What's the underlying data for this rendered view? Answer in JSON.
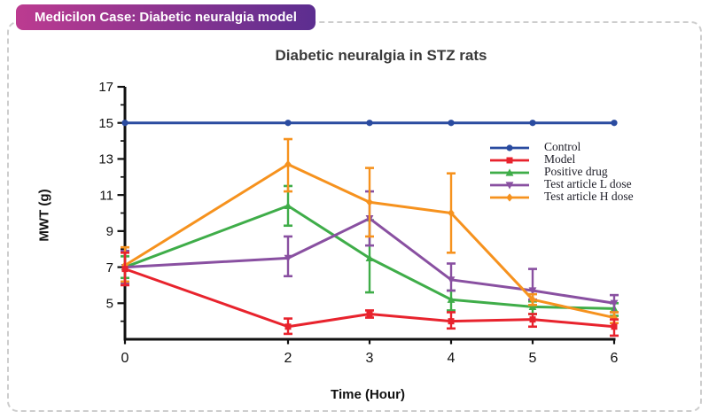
{
  "badge": {
    "label": "Medicilon Case: Diabetic neuralgia model",
    "gradient_start": "#bc3b90",
    "gradient_end": "#5c2e90",
    "text_color": "#ffffff"
  },
  "chart_data": {
    "type": "line",
    "title": "Diabetic neuralgia in STZ rats",
    "xlabel": "Time (Hour)",
    "ylabel": "MWT (g)",
    "x": [
      0,
      2,
      3,
      4,
      5,
      6
    ],
    "xlim": [
      0,
      6
    ],
    "ylim": [
      3,
      17
    ],
    "x_ticks": [
      0,
      2,
      3,
      4,
      5,
      6
    ],
    "y_major_ticks": [
      5,
      7,
      9,
      11,
      13,
      15,
      17
    ],
    "y_minor_ticks": [
      4,
      6,
      8,
      10,
      12,
      14,
      16
    ],
    "grid": false,
    "legend_position": "right",
    "axis_color": "#111111",
    "series": [
      {
        "name": "Control",
        "color": "#2a4ba0",
        "marker": "circle",
        "values": [
          15,
          15,
          15,
          15,
          15,
          15
        ],
        "err_low": [
          0,
          0,
          0,
          0,
          0,
          0
        ],
        "err_high": [
          0,
          0,
          0,
          0,
          0,
          0
        ]
      },
      {
        "name": "Model",
        "color": "#e8232d",
        "marker": "square",
        "values": [
          6.9,
          3.7,
          4.4,
          4.0,
          4.1,
          3.7
        ],
        "err_low": [
          0.9,
          0.4,
          0.2,
          0.4,
          0.4,
          0.5
        ],
        "err_high": [
          0.9,
          0.45,
          0.2,
          0.5,
          0.3,
          0.4
        ]
      },
      {
        "name": "Positive drug",
        "color": "#3fad49",
        "marker": "triangle-up",
        "values": [
          7.0,
          10.4,
          7.5,
          5.2,
          4.8,
          4.7
        ],
        "err_low": [
          0.6,
          1.1,
          1.9,
          0.6,
          0.4,
          0.4
        ],
        "err_high": [
          0.6,
          1.1,
          2.1,
          0.5,
          0.3,
          0.3
        ]
      },
      {
        "name": "Test article L dose",
        "color": "#8950a1",
        "marker": "triangle-down",
        "values": [
          7.0,
          7.5,
          9.7,
          6.3,
          5.7,
          5.0
        ],
        "err_low": [
          0.9,
          1.0,
          1.5,
          0.6,
          0.5,
          0.5
        ],
        "err_high": [
          0.9,
          1.2,
          1.5,
          0.9,
          1.2,
          0.45
        ]
      },
      {
        "name": "Test article H dose",
        "color": "#f6921e",
        "marker": "diamond",
        "values": [
          7.1,
          12.7,
          10.6,
          10.0,
          5.2,
          4.2
        ],
        "err_low": [
          0.9,
          1.5,
          1.9,
          2.2,
          0.3,
          0.3
        ],
        "err_high": [
          1.0,
          1.4,
          1.9,
          2.2,
          0.3,
          0.3
        ]
      }
    ]
  }
}
